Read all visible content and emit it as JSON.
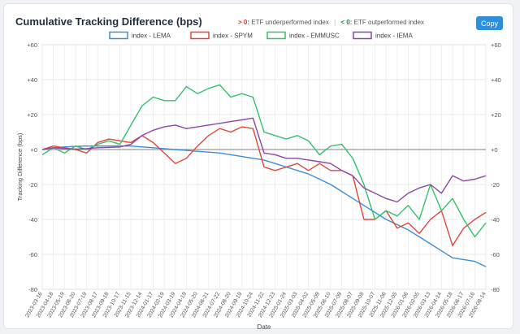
{
  "header": {
    "title": "Cumulative Tracking Difference (bps)",
    "note_neg_symbol": "> 0:",
    "note_neg_text": "ETF underperformed index",
    "note_sep": "|",
    "note_pos_symbol": "< 0:",
    "note_pos_text": "ETF outperformed index",
    "copy_label": "Copy"
  },
  "chart_data": {
    "type": "line",
    "title": "Cumulative Tracking Difference (bps)",
    "xlabel": "Date",
    "ylabel": "Tracking Difference (bps)",
    "ylim": [
      -80,
      60
    ],
    "yticks": [
      60,
      40,
      20,
      0,
      -20,
      -40,
      -60,
      -80
    ],
    "ytick_labels": [
      "+60",
      "+40",
      "+20",
      "+0",
      "-20",
      "-40",
      "-60",
      "-80"
    ],
    "grid": true,
    "legend_position": "top-center",
    "x_ticks": [
      "2023-03-16",
      "2023-04-18",
      "2023-05-19",
      "2023-06-20",
      "2023-07-19",
      "2023-08-17",
      "2023-09-18",
      "2023-10-17",
      "2023-11-15",
      "2023-12-14",
      "2024-01-17",
      "2024-02-19",
      "2024-03-19",
      "2024-04-19",
      "2024-05-20",
      "2024-06-21",
      "2024-07-22",
      "2024-08-20",
      "2024-09-19",
      "2024-10-24",
      "2024-11-22",
      "2024-12-23",
      "2025-01-24",
      "2025-03-03",
      "2025-04-02",
      "2025-05-09",
      "2025-06-10",
      "2025-07-09",
      "2025-08-07",
      "2025-09-08",
      "2025-10-07",
      "2025-11-06",
      "2025-12-05",
      "2026-01-06",
      "2026-02-05",
      "2026-03-13",
      "2026-04-14",
      "2026-05-18",
      "2026-06-17",
      "2026-07-16",
      "2026-08-14"
    ],
    "series": [
      {
        "name": "index - LEMA",
        "color": "#3b8fd6",
        "values": [
          0,
          1,
          1.5,
          1.8,
          2,
          2,
          2,
          2,
          2,
          1.5,
          1,
          0.5,
          0,
          -0.5,
          -1,
          -1.5,
          -2,
          -3,
          -4,
          -5,
          -6,
          -8,
          -10,
          -12,
          -14,
          -17,
          -20,
          -24,
          -28,
          -32,
          -36,
          -40,
          -43,
          -46,
          -50,
          -54,
          -58,
          -62,
          -63,
          -64,
          -67
        ]
      },
      {
        "name": "index - SPYM",
        "color": "#e0473a",
        "values": [
          0,
          2,
          1,
          0,
          -2,
          4,
          6,
          5,
          4,
          8,
          4,
          -2,
          -8,
          -5,
          2,
          8,
          12,
          10,
          13,
          12,
          -10,
          -12,
          -10,
          -8,
          -12,
          -8,
          -12,
          -12,
          -15,
          -40,
          -40,
          -35,
          -45,
          -42,
          -48,
          -40,
          -35,
          -55,
          -45,
          -40,
          -36
        ]
      },
      {
        "name": "index - EMMUSC",
        "color": "#35c06a",
        "values": [
          -3,
          1,
          -2,
          2,
          0,
          3,
          5,
          3,
          14,
          25,
          30,
          28,
          28,
          36,
          32,
          35,
          37,
          30,
          32,
          30,
          10,
          8,
          6,
          8,
          5,
          -3,
          2,
          3,
          -5,
          -20,
          -40,
          -35,
          -38,
          -32,
          -40,
          -20,
          -35,
          -28,
          -40,
          -50,
          -42
        ]
      },
      {
        "name": "index - IEMA",
        "color": "#8e44ad",
        "values": [
          0,
          1,
          0.5,
          0.3,
          0.5,
          1,
          1.2,
          1.5,
          3,
          8,
          11,
          13,
          14,
          12,
          13,
          14,
          15,
          16,
          17,
          18,
          -2,
          -3,
          -5,
          -5,
          -6,
          -7,
          -8,
          -12,
          -15,
          -22,
          -25,
          -28,
          -30,
          -25,
          -22,
          -20,
          -25,
          -15,
          -18,
          -17,
          -15
        ]
      }
    ]
  }
}
